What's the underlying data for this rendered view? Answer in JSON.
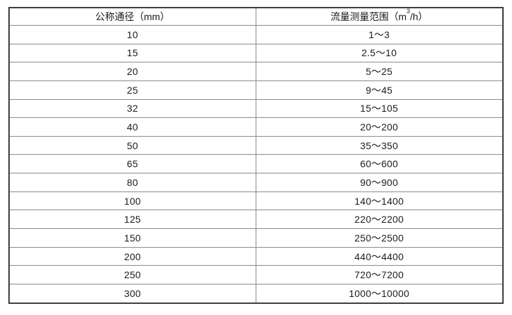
{
  "table": {
    "columns": {
      "dn": {
        "label": "公称通径（mm）"
      },
      "range": {
        "label_prefix": "流量测量范围（m",
        "label_sup": "3",
        "label_suffix": "/h）"
      }
    },
    "rows": [
      {
        "dn": "10",
        "range": "1～3"
      },
      {
        "dn": "15",
        "range": "2.5～10"
      },
      {
        "dn": "20",
        "range": "5～25"
      },
      {
        "dn": "25",
        "range": "9～45"
      },
      {
        "dn": "32",
        "range": "15～105"
      },
      {
        "dn": "40",
        "range": "20～200"
      },
      {
        "dn": "50",
        "range": "35～350"
      },
      {
        "dn": "65",
        "range": "60～600"
      },
      {
        "dn": "80",
        "range": "90～900"
      },
      {
        "dn": "100",
        "range": "140～1400"
      },
      {
        "dn": "125",
        "range": "220～2200"
      },
      {
        "dn": "150",
        "range": "250～2500"
      },
      {
        "dn": "200",
        "range": "440～4400"
      },
      {
        "dn": "250",
        "range": "720～7200"
      },
      {
        "dn": "300",
        "range": "1000～10000"
      }
    ]
  }
}
